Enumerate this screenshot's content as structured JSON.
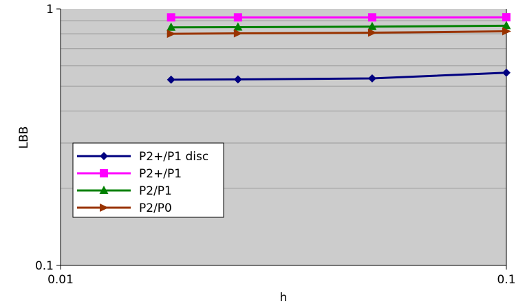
{
  "chart_data": {
    "type": "line",
    "xlabel": "h",
    "ylabel": "LBB",
    "x_scale": "log",
    "y_scale": "log",
    "xlim": [
      0.01,
      0.1
    ],
    "ylim": [
      0.1,
      1
    ],
    "x_ticks": [
      "0.01",
      "0.1"
    ],
    "y_ticks": [
      "0.1",
      "1"
    ],
    "grid": "horizontal minor",
    "legend": "bottom-left",
    "series": [
      {
        "name": "P2+/P1 disc",
        "color": "#000080",
        "marker": "diamond",
        "x": [
          0.0177,
          0.025,
          0.05,
          0.1
        ],
        "y": [
          0.53,
          0.531,
          0.536,
          0.564
        ]
      },
      {
        "name": "P2+/P1",
        "color": "#ff00ff",
        "marker": "square",
        "x": [
          0.0177,
          0.025,
          0.05,
          0.1
        ],
        "y": [
          0.927,
          0.927,
          0.927,
          0.928
        ]
      },
      {
        "name": "P2/P1",
        "color": "#008000",
        "marker": "triangle",
        "x": [
          0.0177,
          0.025,
          0.05,
          0.1
        ],
        "y": [
          0.848,
          0.849,
          0.853,
          0.86
        ]
      },
      {
        "name": "P2/P0",
        "color": "#993300",
        "marker": "triangle-right",
        "x": [
          0.0177,
          0.025,
          0.05,
          0.1
        ],
        "y": [
          0.8,
          0.803,
          0.808,
          0.818
        ]
      }
    ]
  }
}
